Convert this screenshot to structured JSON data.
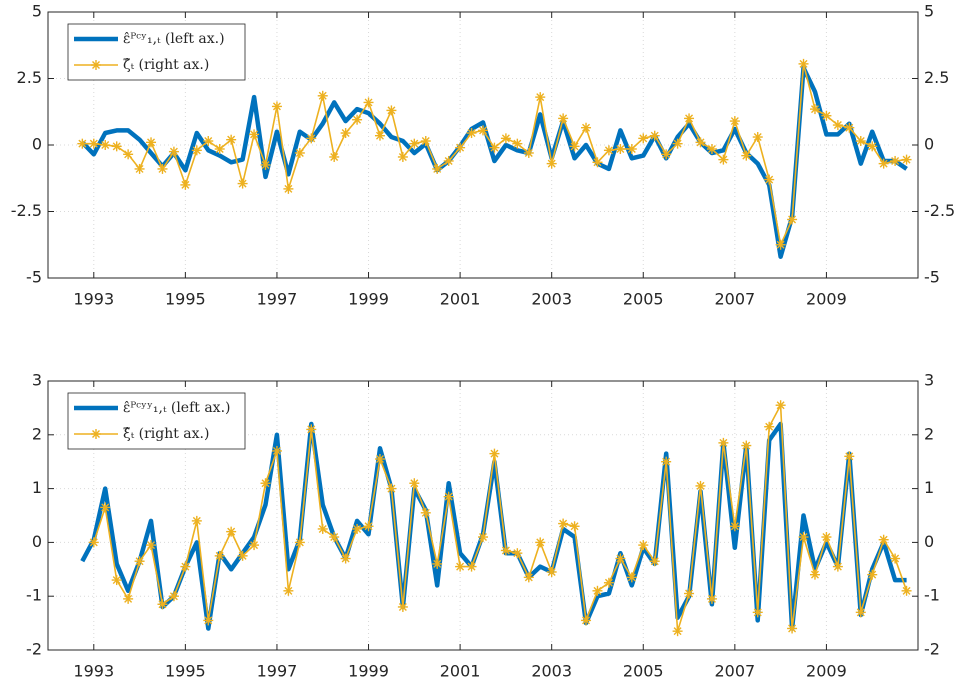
{
  "chart_data": [
    {
      "type": "line",
      "legend": "upper left",
      "grid": true,
      "x": [
        1992.75,
        1993,
        1993.25,
        1993.5,
        1993.75,
        1994,
        1994.25,
        1994.5,
        1994.75,
        1995,
        1995.25,
        1995.5,
        1995.75,
        1996,
        1996.25,
        1996.5,
        1996.75,
        1997,
        1997.25,
        1997.5,
        1997.75,
        1998,
        1998.25,
        1998.5,
        1998.75,
        1999,
        1999.25,
        1999.5,
        1999.75,
        2000,
        2000.25,
        2000.5,
        2000.75,
        2001,
        2001.25,
        2001.5,
        2001.75,
        2002,
        2002.25,
        2002.5,
        2002.75,
        2003,
        2003.25,
        2003.5,
        2003.75,
        2004,
        2004.25,
        2004.5,
        2004.75,
        2005,
        2005.25,
        2005.5,
        2005.75,
        2006,
        2006.25,
        2006.5,
        2006.75,
        2007,
        2007.25,
        2007.5,
        2007.75,
        2008,
        2008.25,
        2008.5,
        2008.75,
        2009,
        2009.25,
        2009.5,
        2009.75,
        2010,
        2010.25,
        2010.5,
        2010.75
      ],
      "xlim": [
        1992,
        2011
      ],
      "xticks": [
        1993,
        1995,
        1997,
        1999,
        2001,
        2003,
        2005,
        2007,
        2009
      ],
      "ylim": [
        -5,
        5
      ],
      "yticks": [
        -5,
        -2.5,
        0,
        2.5,
        5
      ],
      "y2lim": [
        -5,
        5
      ],
      "y2ticks": [
        -5,
        -2.5,
        0,
        2.5,
        5
      ],
      "series": [
        {
          "name": "ε̂ᴾᶜʸ₁,ₜ (left ax.)",
          "color": "#0072BD",
          "axis": "y",
          "values": [
            0.1,
            -0.35,
            0.45,
            0.55,
            0.55,
            0.2,
            -0.3,
            -0.8,
            -0.3,
            -0.95,
            0.45,
            -0.2,
            -0.4,
            -0.65,
            -0.55,
            1.8,
            -1.2,
            0.5,
            -1.1,
            0.5,
            0.2,
            0.8,
            1.6,
            0.9,
            1.35,
            1.2,
            0.8,
            0.3,
            0.15,
            -0.3,
            0.05,
            -0.95,
            -0.6,
            -0.05,
            0.6,
            0.85,
            -0.6,
            0.0,
            -0.2,
            -0.3,
            1.15,
            -0.5,
            0.9,
            -0.5,
            0.0,
            -0.7,
            -0.9,
            0.55,
            -0.5,
            -0.4,
            0.35,
            -0.5,
            0.3,
            0.8,
            0.1,
            -0.3,
            -0.2,
            0.6,
            -0.3,
            -0.7,
            -1.5,
            -4.2,
            -2.7,
            2.9,
            2.0,
            0.4,
            0.4,
            0.8,
            -0.7,
            0.5,
            -0.6,
            -0.6,
            -0.9
          ]
        },
        {
          "name": "ζ̂ₜ (right ax.)",
          "color": "#EDB120",
          "axis": "y2",
          "marker": "asterisk",
          "values": [
            0.05,
            0.05,
            0.0,
            -0.05,
            -0.35,
            -0.9,
            0.1,
            -0.9,
            -0.25,
            -1.5,
            -0.2,
            0.15,
            -0.15,
            0.2,
            -1.45,
            0.4,
            -0.75,
            1.45,
            -1.65,
            -0.3,
            0.25,
            1.85,
            -0.45,
            0.45,
            0.95,
            1.6,
            0.35,
            1.3,
            -0.45,
            0.05,
            0.15,
            -0.9,
            -0.6,
            -0.1,
            0.45,
            0.55,
            -0.1,
            0.25,
            0.05,
            -0.3,
            1.8,
            -0.7,
            1.0,
            -0.05,
            0.65,
            -0.65,
            -0.2,
            -0.15,
            -0.15,
            0.25,
            0.35,
            -0.35,
            0.05,
            1.0,
            0.1,
            -0.15,
            -0.55,
            0.9,
            -0.4,
            0.3,
            -1.3,
            -3.75,
            -2.8,
            3.05,
            1.35,
            1.1,
            0.75,
            0.65,
            0.15,
            -0.05,
            -0.7,
            -0.6,
            -0.55
          ]
        }
      ]
    },
    {
      "type": "line",
      "legend": "upper left",
      "grid": true,
      "x": [
        1992.75,
        1993,
        1993.25,
        1993.5,
        1993.75,
        1994,
        1994.25,
        1994.5,
        1994.75,
        1995,
        1995.25,
        1995.5,
        1995.75,
        1996,
        1996.25,
        1996.5,
        1996.75,
        1997,
        1997.25,
        1997.5,
        1997.75,
        1998,
        1998.25,
        1998.5,
        1998.75,
        1999,
        1999.25,
        1999.5,
        1999.75,
        2000,
        2000.25,
        2000.5,
        2000.75,
        2001,
        2001.25,
        2001.5,
        2001.75,
        2002,
        2002.25,
        2002.5,
        2002.75,
        2003,
        2003.25,
        2003.5,
        2003.75,
        2004,
        2004.25,
        2004.5,
        2004.75,
        2005,
        2005.25,
        2005.5,
        2005.75,
        2006,
        2006.25,
        2006.5,
        2006.75,
        2007,
        2007.25,
        2007.5,
        2007.75,
        2008,
        2008.25,
        2008.5,
        2008.75,
        2009,
        2009.25,
        2009.5,
        2009.75,
        2010,
        2010.25,
        2010.5,
        2010.75
      ],
      "xlim": [
        1992,
        2011
      ],
      "xticks": [
        1993,
        1995,
        1997,
        1999,
        2001,
        2003,
        2005,
        2007,
        2009
      ],
      "ylim": [
        -2,
        3
      ],
      "yticks": [
        -2,
        -1,
        0,
        1,
        2,
        3
      ],
      "y2lim": [
        -2,
        3
      ],
      "y2ticks": [
        -2,
        -1,
        0,
        1,
        2,
        3
      ],
      "series": [
        {
          "name": "ε̂ᴾᶜʸʸ₁,ₜ (left ax.)",
          "color": "#0072BD",
          "axis": "y",
          "values": [
            -0.35,
            0.05,
            1.0,
            -0.4,
            -0.9,
            -0.35,
            0.4,
            -1.2,
            -1.0,
            -0.45,
            0.0,
            -1.6,
            -0.2,
            -0.5,
            -0.2,
            0.1,
            0.7,
            2.0,
            -0.5,
            0.05,
            2.2,
            0.7,
            0.1,
            -0.3,
            0.4,
            0.15,
            1.75,
            1.0,
            -1.2,
            1.0,
            0.6,
            -0.8,
            1.1,
            -0.2,
            -0.45,
            0.15,
            1.5,
            -0.2,
            -0.2,
            -0.65,
            -0.45,
            -0.55,
            0.25,
            0.1,
            -1.5,
            -1.0,
            -0.95,
            -0.2,
            -0.8,
            -0.1,
            -0.4,
            1.65,
            -1.4,
            -1.0,
            0.95,
            -1.15,
            1.85,
            -0.1,
            1.8,
            -1.45,
            1.9,
            2.2,
            -1.6,
            0.5,
            -0.5,
            0.0,
            -0.45,
            1.65,
            -1.35,
            -0.5,
            0.0,
            -0.7,
            -0.7
          ]
        },
        {
          "name": "ξ̂ₜ (right ax.)",
          "color": "#EDB120",
          "axis": "y2",
          "marker": "asterisk",
          "values": [
            null,
            0.0,
            0.65,
            -0.7,
            -1.05,
            -0.35,
            -0.05,
            -1.15,
            -1.0,
            -0.45,
            0.4,
            -1.45,
            -0.25,
            0.2,
            -0.25,
            -0.05,
            1.1,
            1.7,
            -0.9,
            0.0,
            2.1,
            0.25,
            0.1,
            -0.3,
            0.25,
            0.3,
            1.55,
            1.0,
            -1.2,
            1.1,
            0.55,
            -0.4,
            0.85,
            -0.45,
            -0.45,
            0.1,
            1.65,
            -0.15,
            -0.2,
            -0.65,
            0.0,
            -0.55,
            0.35,
            0.3,
            -1.45,
            -0.9,
            -0.75,
            -0.3,
            -0.65,
            -0.05,
            -0.35,
            1.5,
            -1.65,
            -0.95,
            1.05,
            -1.05,
            1.85,
            0.3,
            1.8,
            -1.3,
            2.15,
            2.55,
            -1.6,
            0.1,
            -0.6,
            0.1,
            -0.45,
            1.6,
            -1.3,
            -0.6,
            0.05,
            -0.3,
            -0.9
          ]
        }
      ]
    }
  ]
}
